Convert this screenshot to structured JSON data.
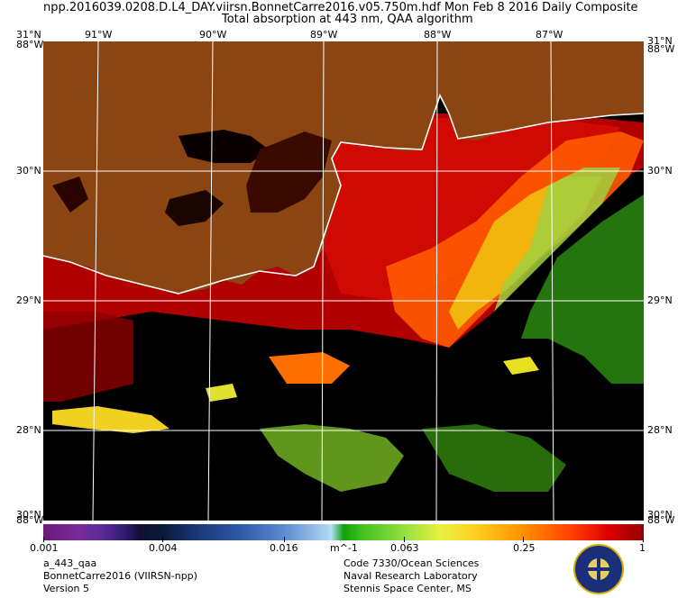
{
  "header": {
    "title_line1": "npp.2016039.0208.D.L4_DAY.viirsn.BonnetCarre2016.v05.750m.hdf    Mon Feb  8 2016 Daily Composite",
    "title_line2": "Total absorption at 443 nm, QAA algorithm"
  },
  "map": {
    "lon_labels": [
      "91°W",
      "90°W",
      "89°W",
      "88°W",
      "87°W"
    ],
    "lat_labels": [
      "30°N",
      "29°N",
      "28°N"
    ],
    "corner_top_left": "31°N",
    "corner_top_right": "31°N",
    "corner_left_upper": "88°W",
    "corner_right_upper": "88°W",
    "corner_bottom_left": "88°W",
    "corner_bottom_left_lat": "30°N",
    "corner_bottom_right": "88°W",
    "corner_bottom_right_lat": "30°N",
    "land_color": "#8b4513",
    "no_data_color": "#000000",
    "grid_color": "#ffffff"
  },
  "colorbar": {
    "labels": [
      "0.001",
      "0.004",
      "0.016",
      "m^-1",
      "0.063",
      "0.25",
      "1"
    ],
    "scale": "log"
  },
  "footer": {
    "left_line1": "a_443_qaa",
    "left_line2": "BonnetCarre2016 (VIIRSN-npp)",
    "left_line3": "Version 5",
    "right_line1": "Code 7330/Ocean Sciences",
    "right_line2": "Naval Research Laboratory",
    "right_line3": "Stennis Space Center, MS"
  }
}
